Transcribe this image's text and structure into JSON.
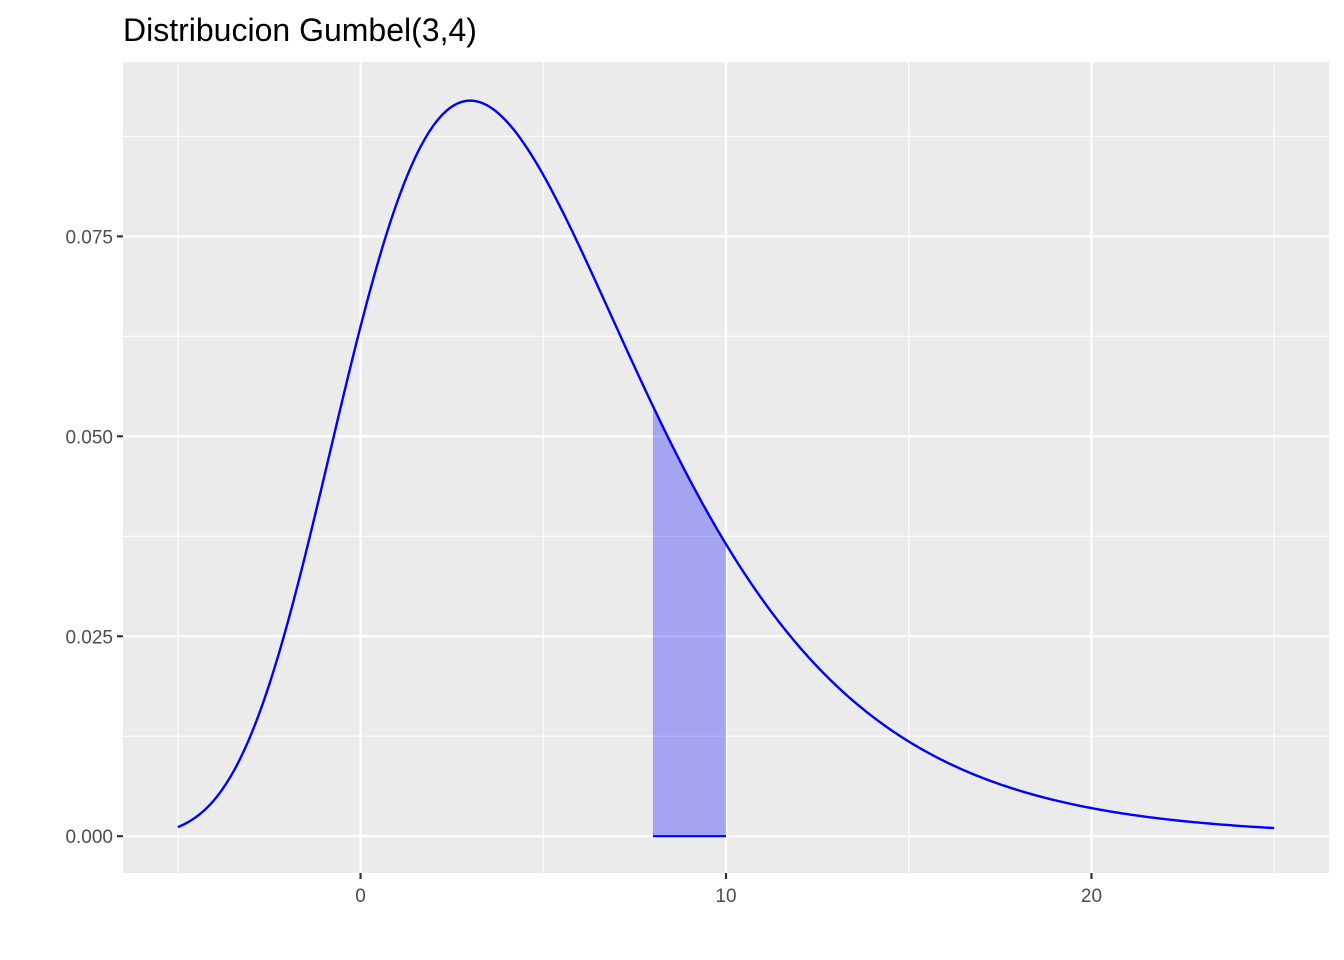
{
  "chart_data": {
    "type": "area",
    "title": "Distribucion Gumbel(3,4)",
    "xlabel": "",
    "ylabel": "",
    "distribution": {
      "name": "Gumbel",
      "location": 3,
      "scale": 4
    },
    "x_domain": [
      -5,
      25
    ],
    "shaded_interval": [
      8,
      10
    ],
    "xlim": [
      -6.5,
      26.5
    ],
    "ylim": [
      -0.0046,
      0.0968
    ],
    "x_ticks": [
      0,
      10,
      20
    ],
    "x_tick_labels": [
      "0",
      "10",
      "20"
    ],
    "y_ticks": [
      0.0,
      0.025,
      0.05,
      0.075
    ],
    "y_tick_labels": [
      "0.000",
      "0.025",
      "0.050",
      "0.075"
    ],
    "grid": true,
    "legend": "none",
    "series": [
      {
        "x": [
          -5,
          -4,
          -3,
          -2,
          -1,
          0,
          1,
          2,
          3,
          4,
          5,
          6,
          7,
          8,
          9,
          10,
          11,
          12,
          13,
          14,
          15,
          16,
          17,
          18,
          19,
          20,
          21,
          22,
          23,
          24,
          25
        ],
        "y": [
          0.0011,
          0.0047,
          0.0136,
          0.0282,
          0.0462,
          0.0634,
          0.078,
          0.0873,
          0.092,
          0.091,
          0.0855,
          0.0767,
          0.0661,
          0.0551,
          0.0447,
          0.0354,
          0.0277,
          0.0214,
          0.0164,
          0.0125,
          0.0094,
          0.0071,
          0.0054,
          0.004,
          0.003,
          0.0023,
          0.0017,
          0.0013,
          0.0009,
          0.0007,
          0.001
        ]
      }
    ],
    "colors": {
      "line": "#0000ff",
      "fill": "#0000ff",
      "fill_opacity": 0.3,
      "panel": "#ebebeb",
      "grid": "#ffffff"
    }
  }
}
